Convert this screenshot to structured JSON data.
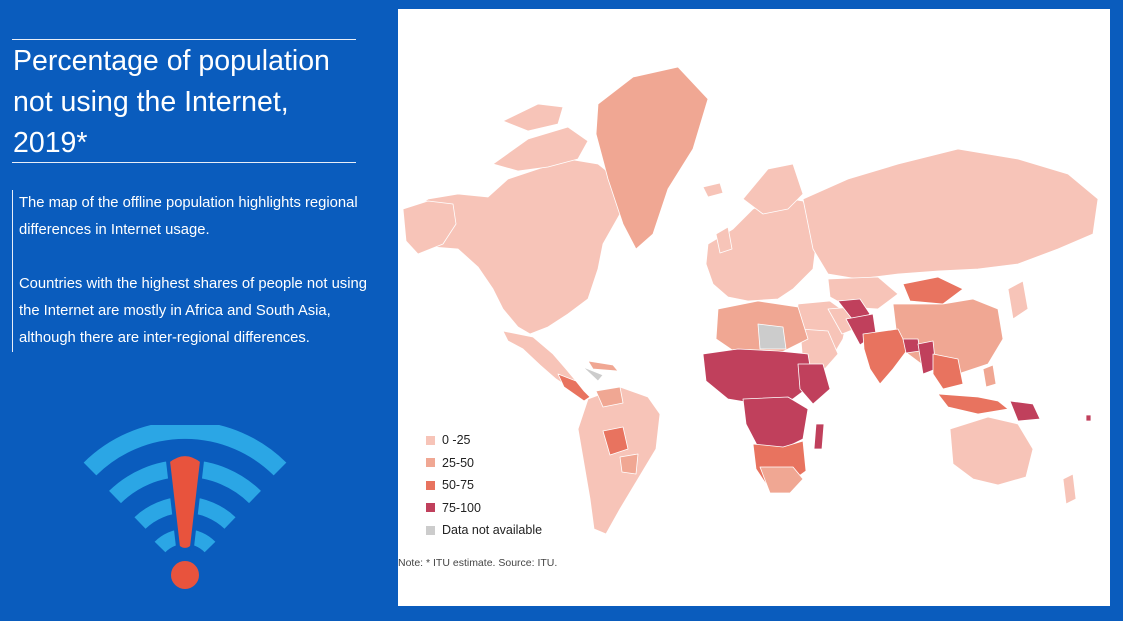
{
  "title": "Percentage of population not using the Internet, 2019*",
  "description": {
    "paragraph1": "The map of the offline population highlights regional differences in Internet usage.",
    "paragraph2": "Countries with the highest shares of people not using the Internet are mostly in Africa and South Asia, although there are inter-regional differences."
  },
  "legend": {
    "items": [
      {
        "label": "0 -25",
        "color": "#f7c4b8"
      },
      {
        "label": "25-50",
        "color": "#f0a793"
      },
      {
        "label": "50-75",
        "color": "#e8735f"
      },
      {
        "label": "75-100",
        "color": "#c0405c"
      },
      {
        "label": "Data not available",
        "color": "#cccccc"
      }
    ]
  },
  "note": "Note: * ITU estimate. Source: ITU.",
  "colors": {
    "background": "#0a5cbd",
    "wifi_arcs": "#2ba6e5",
    "alert": "#e8533d"
  }
}
